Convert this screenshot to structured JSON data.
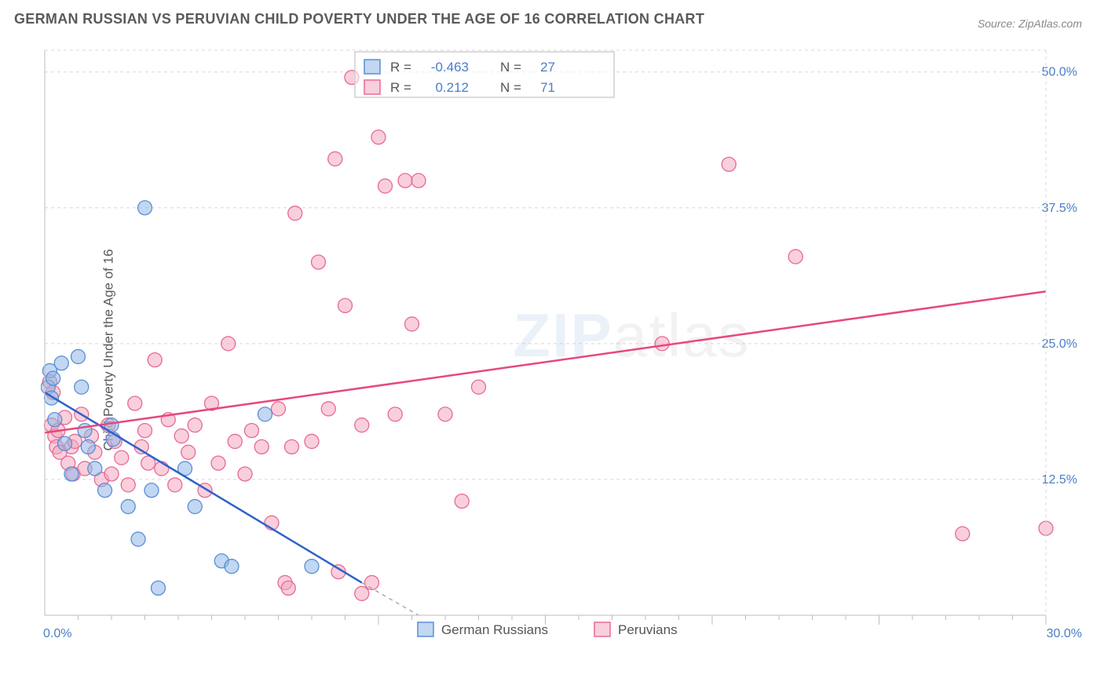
{
  "title": "GERMAN RUSSIAN VS PERUVIAN CHILD POVERTY UNDER THE AGE OF 16 CORRELATION CHART",
  "source_prefix": "Source: ",
  "source_name": "ZipAtlas.com",
  "yaxis_label": "Child Poverty Under the Age of 16",
  "watermark_bold": "ZIP",
  "watermark_light": "atlas",
  "chart": {
    "type": "scatter",
    "xlim": [
      0,
      30
    ],
    "ylim": [
      0,
      52
    ],
    "grid_ylines": [
      12.5,
      25.0,
      37.5,
      50.0
    ],
    "ytick_labels": [
      "12.5%",
      "25.0%",
      "37.5%",
      "50.0%"
    ],
    "xlim_labels": {
      "min": "0.0%",
      "max": "30.0%"
    },
    "x_ticks_major": [
      10,
      15,
      20,
      25,
      30
    ],
    "x_ticks_minor": [
      1,
      2,
      3,
      4,
      5,
      6,
      7,
      8,
      9,
      11,
      12,
      13,
      14,
      16,
      17,
      18,
      19,
      21,
      22,
      23,
      24,
      26,
      27,
      28,
      29
    ],
    "grid_color": "#d8d8d8",
    "axis_color": "#bcbcbc",
    "tick_color": "#bcbcbc",
    "background_color": "#ffffff",
    "point_radius": 9,
    "point_opacity": 0.55,
    "line_width": 2.5
  },
  "series": [
    {
      "id": "german_russians",
      "label": "German Russians",
      "color_fill": "#8fb6e6",
      "color_stroke": "#5a8ed6",
      "line_color": "#2e62c9",
      "R": "-0.463",
      "N": "27",
      "trend": {
        "x1": 0.0,
        "y1": 20.5,
        "x2": 9.5,
        "y2": 3.0
      },
      "trend_dash": {
        "x1": 9.5,
        "y1": 3.0,
        "x2": 11.2,
        "y2": 0.0
      },
      "points": [
        [
          0.1,
          21.0
        ],
        [
          0.15,
          22.5
        ],
        [
          0.2,
          20.0
        ],
        [
          0.25,
          21.8
        ],
        [
          0.3,
          18.0
        ],
        [
          0.5,
          23.2
        ],
        [
          0.6,
          15.8
        ],
        [
          0.8,
          13.0
        ],
        [
          1.0,
          23.8
        ],
        [
          1.1,
          21.0
        ],
        [
          1.2,
          17.0
        ],
        [
          1.3,
          15.5
        ],
        [
          1.5,
          13.5
        ],
        [
          1.8,
          11.5
        ],
        [
          2.0,
          17.5
        ],
        [
          2.05,
          16.2
        ],
        [
          2.5,
          10.0
        ],
        [
          2.8,
          7.0
        ],
        [
          3.0,
          37.5
        ],
        [
          3.2,
          11.5
        ],
        [
          3.4,
          2.5
        ],
        [
          4.2,
          13.5
        ],
        [
          4.5,
          10.0
        ],
        [
          5.3,
          5.0
        ],
        [
          5.6,
          4.5
        ],
        [
          6.6,
          18.5
        ],
        [
          8.0,
          4.5
        ]
      ]
    },
    {
      "id": "peruvians",
      "label": "Peruvians",
      "color_fill": "#f4a8bd",
      "color_stroke": "#e76a94",
      "line_color": "#e7487c",
      "R": "0.212",
      "N": "71",
      "trend": {
        "x1": 0.0,
        "y1": 16.8,
        "x2": 30.0,
        "y2": 29.8
      },
      "trend_dash": null,
      "points": [
        [
          0.15,
          21.5
        ],
        [
          0.2,
          17.5
        ],
        [
          0.25,
          20.5
        ],
        [
          0.3,
          16.5
        ],
        [
          0.35,
          15.5
        ],
        [
          0.4,
          17.0
        ],
        [
          0.45,
          15.0
        ],
        [
          0.6,
          18.2
        ],
        [
          0.7,
          14.0
        ],
        [
          0.8,
          15.5
        ],
        [
          0.85,
          13.0
        ],
        [
          0.9,
          16.0
        ],
        [
          1.1,
          18.5
        ],
        [
          1.2,
          13.5
        ],
        [
          1.4,
          16.5
        ],
        [
          1.5,
          15.0
        ],
        [
          1.7,
          12.5
        ],
        [
          1.9,
          17.5
        ],
        [
          2.0,
          13.0
        ],
        [
          2.1,
          16.0
        ],
        [
          2.3,
          14.5
        ],
        [
          2.5,
          12.0
        ],
        [
          2.7,
          19.5
        ],
        [
          2.9,
          15.5
        ],
        [
          3.0,
          17.0
        ],
        [
          3.1,
          14.0
        ],
        [
          3.3,
          23.5
        ],
        [
          3.5,
          13.5
        ],
        [
          3.7,
          18.0
        ],
        [
          3.9,
          12.0
        ],
        [
          4.1,
          16.5
        ],
        [
          4.3,
          15.0
        ],
        [
          4.5,
          17.5
        ],
        [
          4.8,
          11.5
        ],
        [
          5.0,
          19.5
        ],
        [
          5.2,
          14.0
        ],
        [
          5.5,
          25.0
        ],
        [
          5.7,
          16.0
        ],
        [
          6.0,
          13.0
        ],
        [
          6.2,
          17.0
        ],
        [
          6.5,
          15.5
        ],
        [
          6.8,
          8.5
        ],
        [
          7.0,
          19.0
        ],
        [
          7.2,
          3.0
        ],
        [
          7.3,
          2.5
        ],
        [
          7.4,
          15.5
        ],
        [
          7.5,
          37.0
        ],
        [
          8.0,
          16.0
        ],
        [
          8.2,
          32.5
        ],
        [
          8.5,
          19.0
        ],
        [
          8.7,
          42.0
        ],
        [
          8.8,
          4.0
        ],
        [
          9.0,
          28.5
        ],
        [
          9.2,
          49.5
        ],
        [
          9.5,
          17.5
        ],
        [
          9.5,
          2.0
        ],
        [
          9.8,
          3.0
        ],
        [
          10.0,
          44.0
        ],
        [
          10.2,
          39.5
        ],
        [
          10.5,
          18.5
        ],
        [
          10.8,
          40.0
        ],
        [
          11.0,
          26.8
        ],
        [
          11.2,
          40.0
        ],
        [
          12.0,
          18.5
        ],
        [
          12.5,
          10.5
        ],
        [
          13.0,
          21.0
        ],
        [
          18.5,
          25.0
        ],
        [
          20.5,
          41.5
        ],
        [
          22.5,
          33.0
        ],
        [
          27.5,
          7.5
        ],
        [
          30.0,
          8.0
        ]
      ]
    }
  ],
  "legend_top": {
    "R_label": "R =",
    "N_label": "N ="
  }
}
